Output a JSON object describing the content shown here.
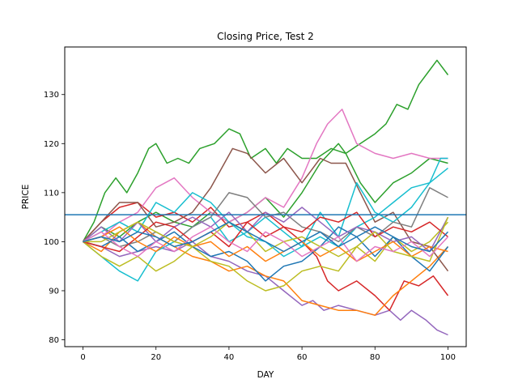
{
  "chart_data": {
    "type": "line",
    "title": "Closing Price, Test 2",
    "xlabel": "DAY",
    "ylabel": "PRICE",
    "xlim": [
      -5,
      105
    ],
    "ylim": [
      78.6,
      139.7
    ],
    "xticks": [
      0,
      20,
      40,
      60,
      80,
      100
    ],
    "yticks": [
      80,
      90,
      100,
      110,
      120,
      130
    ],
    "grid": false,
    "legend": "none",
    "reference_line": {
      "y": 105.5,
      "color": "#1f77b4"
    },
    "colors": [
      "#1f77b4",
      "#ff7f0e",
      "#2ca02c",
      "#d62728",
      "#9467bd",
      "#8c564b",
      "#e377c2",
      "#7f7f7f",
      "#bcbd22",
      "#17becf"
    ],
    "series": [
      {
        "color": "#2ca02c",
        "x": [
          0,
          3,
          6,
          9,
          12,
          15,
          18,
          20,
          23,
          26,
          29,
          32,
          36,
          40,
          43,
          46,
          50,
          53,
          56,
          60,
          64,
          68,
          72,
          76,
          80,
          83,
          86,
          89,
          92,
          95,
          97,
          100
        ],
        "y": [
          100,
          104,
          110,
          113,
          110,
          114,
          119,
          120,
          116,
          117,
          116,
          119,
          120,
          123,
          122,
          117,
          119,
          116,
          119,
          117,
          117,
          119,
          118,
          120,
          122,
          124,
          128,
          127,
          132,
          135,
          137,
          134
        ]
      },
      {
        "color": "#2ca02c",
        "x": [
          0,
          5,
          10,
          15,
          20,
          25,
          30,
          35,
          40,
          45,
          50,
          55,
          60,
          65,
          70,
          72,
          76,
          80,
          85,
          90,
          95,
          100
        ],
        "y": [
          100,
          103,
          101,
          104,
          106,
          104,
          103,
          106,
          104,
          106,
          109,
          105,
          110,
          116,
          120,
          118,
          112,
          108,
          112,
          114,
          117,
          116
        ]
      },
      {
        "color": "#9467bd",
        "x": [
          0,
          5,
          10,
          15,
          20,
          25,
          30,
          35,
          40,
          45,
          50,
          55,
          60,
          63,
          66,
          70,
          75,
          80,
          84,
          87,
          90,
          94,
          97,
          100
        ],
        "y": [
          100,
          99,
          97,
          98,
          99,
          98,
          100,
          97,
          96,
          94,
          93,
          90,
          87,
          88,
          86,
          87,
          86,
          85,
          86,
          84,
          86,
          84,
          82,
          81
        ]
      },
      {
        "color": "#d62728",
        "x": [
          0,
          5,
          10,
          15,
          20,
          25,
          30,
          35,
          40,
          45,
          50,
          55,
          60,
          64,
          67,
          70,
          75,
          80,
          84,
          88,
          92,
          96,
          100
        ],
        "y": [
          100,
          104,
          107,
          108,
          105,
          106,
          104,
          107,
          103,
          104,
          106,
          103,
          100,
          97,
          92,
          90,
          92,
          89,
          86,
          92,
          91,
          93,
          89
        ]
      },
      {
        "color": "#ff7f0e",
        "x": [
          0,
          5,
          10,
          15,
          20,
          25,
          30,
          35,
          40,
          45,
          50,
          55,
          60,
          65,
          70,
          75,
          80,
          85,
          90,
          95,
          100
        ],
        "y": [
          100,
          98,
          102,
          104,
          101,
          99,
          97,
          96,
          94,
          95,
          93,
          92,
          88,
          87,
          86,
          86,
          85,
          89,
          92,
          95,
          99
        ]
      },
      {
        "color": "#e377c2",
        "x": [
          0,
          5,
          10,
          15,
          20,
          25,
          30,
          35,
          40,
          45,
          50,
          55,
          60,
          64,
          67,
          71,
          75,
          80,
          85,
          90,
          95,
          100
        ],
        "y": [
          100,
          101,
          104,
          106,
          111,
          113,
          109,
          106,
          104,
          106,
          109,
          107,
          113,
          120,
          124,
          127,
          120,
          118,
          117,
          118,
          117,
          117
        ]
      },
      {
        "color": "#8c564b",
        "x": [
          0,
          5,
          10,
          15,
          20,
          25,
          30,
          35,
          38,
          41,
          45,
          50,
          55,
          60,
          65,
          68,
          72,
          76,
          80,
          85,
          90,
          95,
          100
        ],
        "y": [
          100,
          104,
          108,
          108,
          103,
          104,
          106,
          111,
          115,
          119,
          118,
          114,
          117,
          112,
          117,
          116,
          116,
          110,
          104,
          106,
          100,
          99,
          94
        ]
      },
      {
        "color": "#17becf",
        "x": [
          0,
          5,
          10,
          15,
          20,
          25,
          30,
          35,
          40,
          45,
          50,
          55,
          60,
          65,
          70,
          75,
          80,
          85,
          90,
          95,
          98,
          100
        ],
        "y": [
          100,
          97,
          94,
          92,
          98,
          100,
          103,
          105,
          100,
          102,
          105,
          102,
          99,
          106,
          101,
          112,
          106,
          104,
          107,
          112,
          117,
          117
        ]
      },
      {
        "color": "#17becf",
        "x": [
          0,
          5,
          10,
          15,
          20,
          25,
          30,
          35,
          40,
          45,
          50,
          55,
          60,
          65,
          70,
          75,
          80,
          85,
          90,
          95,
          100
        ],
        "y": [
          100,
          102,
          104,
          102,
          108,
          106,
          110,
          108,
          104,
          101,
          100,
          97,
          99,
          101,
          99,
          103,
          105,
          108,
          111,
          112,
          115
        ]
      },
      {
        "color": "#7f7f7f",
        "x": [
          0,
          5,
          10,
          15,
          20,
          25,
          30,
          35,
          40,
          45,
          50,
          55,
          60,
          65,
          70,
          75,
          80,
          85,
          90,
          95,
          100
        ],
        "y": [
          100,
          101,
          99,
          100,
          102,
          100,
          103,
          105,
          110,
          109,
          105,
          106,
          103,
          102,
          100,
          103,
          101,
          104,
          103,
          111,
          109
        ]
      },
      {
        "color": "#bcbd22",
        "x": [
          0,
          5,
          10,
          15,
          20,
          25,
          30,
          35,
          40,
          45,
          50,
          55,
          60,
          65,
          70,
          75,
          80,
          85,
          90,
          95,
          100
        ],
        "y": [
          100,
          97,
          95,
          97,
          94,
          96,
          99,
          96,
          95,
          92,
          90,
          91,
          94,
          95,
          94,
          99,
          96,
          101,
          98,
          100,
          104
        ]
      },
      {
        "color": "#1f77b4",
        "x": [
          0,
          5,
          10,
          15,
          20,
          25,
          30,
          35,
          40,
          45,
          50,
          55,
          60,
          65,
          70,
          75,
          80,
          85,
          90,
          95,
          100
        ],
        "y": [
          100,
          99,
          101,
          98,
          100,
          102,
          99,
          97,
          98,
          96,
          92,
          95,
          96,
          99,
          103,
          101,
          97,
          101,
          97,
          94,
          99
        ]
      },
      {
        "color": "#9467bd",
        "x": [
          0,
          5,
          10,
          15,
          20,
          25,
          30,
          35,
          40,
          45,
          50,
          55,
          60,
          65,
          70,
          75,
          80,
          85,
          90,
          95,
          100
        ],
        "y": [
          100,
          103,
          100,
          104,
          100,
          103,
          105,
          103,
          106,
          102,
          106,
          104,
          107,
          104,
          101,
          103,
          102,
          100,
          101,
          98,
          105
        ]
      },
      {
        "color": "#d62728",
        "x": [
          0,
          5,
          10,
          15,
          20,
          25,
          30,
          35,
          40,
          45,
          50,
          55,
          60,
          65,
          70,
          75,
          80,
          85,
          90,
          95,
          100
        ],
        "y": [
          100,
          99,
          98,
          101,
          104,
          103,
          100,
          102,
          99,
          104,
          101,
          103,
          102,
          105,
          104,
          106,
          101,
          103,
          102,
          104,
          101
        ]
      },
      {
        "color": "#ff7f0e",
        "x": [
          0,
          5,
          10,
          15,
          20,
          25,
          30,
          35,
          40,
          45,
          50,
          55,
          60,
          65,
          70,
          75,
          80,
          85,
          90,
          95,
          100
        ],
        "y": [
          100,
          101,
          103,
          100,
          98,
          101,
          99,
          100,
          97,
          99,
          96,
          98,
          100,
          97,
          99,
          96,
          98,
          100,
          97,
          99,
          98
        ]
      },
      {
        "color": "#bcbd22",
        "x": [
          0,
          5,
          10,
          15,
          20,
          25,
          30,
          35,
          40,
          45,
          50,
          55,
          60,
          65,
          70,
          75,
          80,
          85,
          90,
          95,
          100
        ],
        "y": [
          100,
          100,
          102,
          104,
          102,
          100,
          99,
          101,
          104,
          102,
          98,
          100,
          101,
          99,
          97,
          99,
          102,
          98,
          97,
          96,
          105
        ]
      },
      {
        "color": "#e377c2",
        "x": [
          0,
          5,
          10,
          15,
          20,
          25,
          30,
          35,
          40,
          45,
          50,
          55,
          60,
          65,
          70,
          75,
          80,
          85,
          90,
          95,
          100
        ],
        "y": [
          100,
          102,
          99,
          97,
          100,
          98,
          101,
          103,
          100,
          98,
          102,
          100,
          97,
          99,
          101,
          96,
          99,
          98,
          100,
          97,
          101
        ]
      },
      {
        "color": "#1f77b4",
        "x": [
          0,
          5,
          10,
          15,
          20,
          25,
          30,
          35,
          40,
          45,
          50,
          55,
          60,
          65,
          70,
          75,
          80,
          85,
          90,
          95,
          100
        ],
        "y": [
          100,
          101,
          100,
          102,
          101,
          99,
          100,
          102,
          104,
          102,
          100,
          98,
          100,
          102,
          99,
          101,
          103,
          101,
          99,
          98,
          102
        ]
      }
    ]
  }
}
